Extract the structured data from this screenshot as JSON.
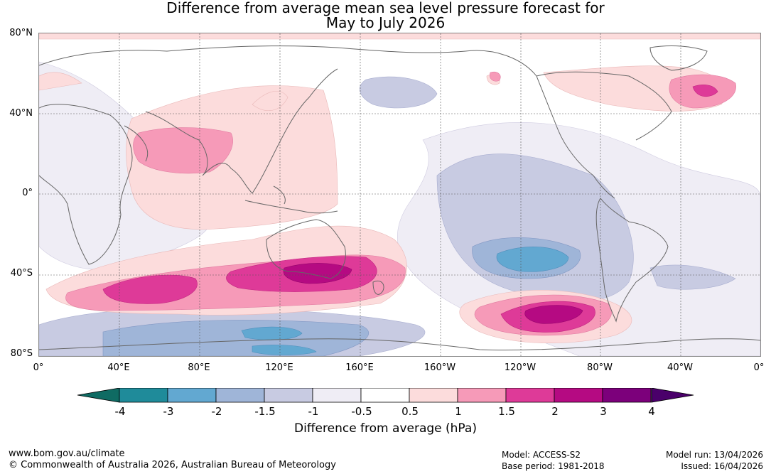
{
  "title_line1": "Difference from average mean sea level pressure forecast for",
  "title_line2": "May to July 2026",
  "lat_labels": [
    "80°N",
    "40°N",
    "0°",
    "40°S",
    "80°S"
  ],
  "lon_labels": [
    "0°",
    "40°E",
    "80°E",
    "120°E",
    "160°E",
    "160°W",
    "120°W",
    "80°W",
    "40°W",
    "0°"
  ],
  "colorbar": {
    "ticks": [
      "-4",
      "-3",
      "-2",
      "-1.5",
      "-1",
      "-0.5",
      "0.5",
      "1",
      "1.5",
      "2",
      "3",
      "4"
    ],
    "colors": [
      "#1f8b9a",
      "#62a8d1",
      "#9fb5d8",
      "#c8cbe2",
      "#efedf5",
      "#ffffff",
      "#fcdcdc",
      "#f69ab8",
      "#de3a98",
      "#b50a82",
      "#7c007b"
    ],
    "under_color": "#0f6b63",
    "over_color": "#4a006a",
    "title": "Difference from average (hPa)"
  },
  "footer": {
    "website": "www.bom.gov.au/climate",
    "copyright": "© Commonwealth of Australia 2026, Australian Bureau of Meteorology",
    "model": "Model: ACCESS-S2",
    "base_period": "Base period: 1981-2018",
    "model_run": "Model run: 13/04/2026",
    "issued": "Issued: 16/04/2026"
  }
}
